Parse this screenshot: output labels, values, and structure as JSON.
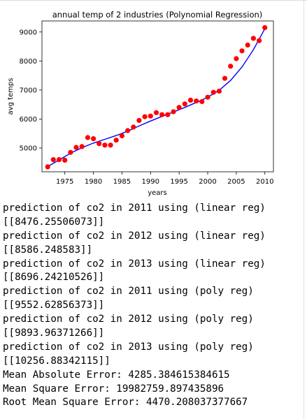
{
  "chart_data": {
    "type": "scatter",
    "title": "annual temp of 2 industries (Polynomial Regression)",
    "xlabel": "years",
    "ylabel": "avg temps",
    "xlim": [
      1971,
      2011.5
    ],
    "ylim": [
      4180,
      9380
    ],
    "xticks": [
      1975,
      1980,
      1985,
      1990,
      1995,
      2000,
      2005,
      2010
    ],
    "yticks": [
      5000,
      6000,
      7000,
      8000,
      9000
    ],
    "grid": false,
    "series": [
      {
        "kind": "scatter",
        "color": "#ff0000",
        "x": [
          1972,
          1973,
          1974,
          1975,
          1976,
          1977,
          1978,
          1979,
          1980,
          1981,
          1982,
          1983,
          1984,
          1985,
          1986,
          1987,
          1988,
          1989,
          1990,
          1991,
          1992,
          1993,
          1994,
          1995,
          1996,
          1997,
          1998,
          1999,
          2000,
          2001,
          2002,
          2003,
          2004,
          2005,
          2006,
          2007,
          2008,
          2009,
          2010
        ],
        "y": [
          4350,
          4600,
          4600,
          4580,
          4850,
          5020,
          5050,
          5360,
          5320,
          5150,
          5100,
          5100,
          5270,
          5420,
          5600,
          5720,
          5950,
          6080,
          6100,
          6220,
          6150,
          6150,
          6250,
          6400,
          6520,
          6650,
          6620,
          6600,
          6750,
          6920,
          6960,
          7400,
          7820,
          8080,
          8350,
          8550,
          8780,
          8700,
          9150
        ]
      },
      {
        "kind": "line",
        "color": "#0000ff",
        "x": [
          1972,
          1974,
          1976,
          1978,
          1980,
          1982,
          1984,
          1986,
          1988,
          1990,
          1992,
          1994,
          1996,
          1998,
          2000,
          2002,
          2004,
          2006,
          2008,
          2010
        ],
        "y": [
          4360,
          4590,
          4820,
          5010,
          5170,
          5300,
          5430,
          5580,
          5760,
          5930,
          6090,
          6240,
          6400,
          6570,
          6750,
          6990,
          7330,
          7790,
          8390,
          9110
        ]
      }
    ]
  },
  "output": {
    "lines": [
      "prediction of co2 in 2011 using (linear reg)",
      "[[8476.25506073]]",
      "prediction of co2 in 2012 using (linear reg)",
      "[[8586.248583]]",
      "prediction of co2 in 2013 using (linear reg)",
      "[[8696.24210526]]",
      "prediction of co2 in 2011 using (poly reg)",
      "[[9552.62856373]]",
      "prediction of co2 in 2012 using (poly reg)",
      "[[9893.96371266]]",
      "prediction of co2 in 2013 using (poly reg)",
      "[[10256.88342115]]",
      "Mean Absolute Error: 4285.384615384615",
      "Mean Square Error: 19982759.897435896",
      "Root Mean Square Error: 4470.208037377667"
    ]
  }
}
